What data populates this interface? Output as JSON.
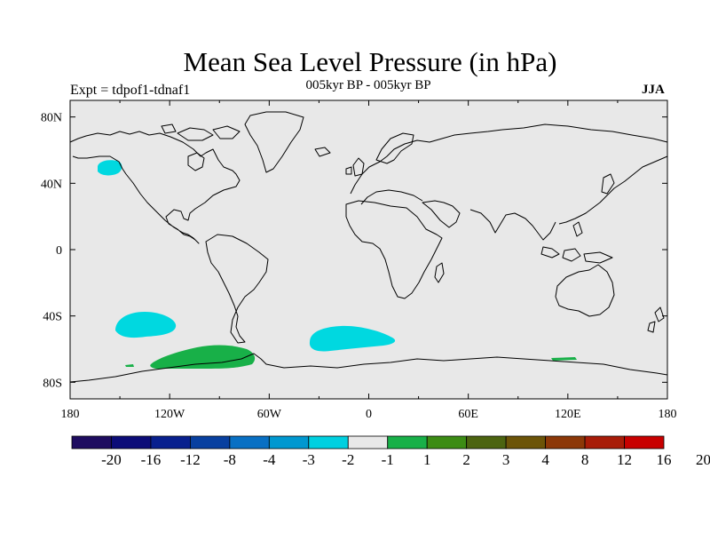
{
  "title": "Mean Sea Level Pressure (in hPa)",
  "subtitle": "005kyr BP - 005kyr BP",
  "left_label": "Expt = tdpof1-tdnaf1",
  "right_label": "JJA",
  "colors": {
    "ocean_background": "#e8e8e8",
    "coastline": "#000000"
  },
  "axes": {
    "lon_ticks": [
      "180",
      "120W",
      "60W",
      "0",
      "60E",
      "120E",
      "180"
    ],
    "lat_ticks": [
      "80N",
      "40N",
      "0",
      "40S",
      "80S"
    ]
  },
  "colorbar": {
    "colors": [
      "#1e0c60",
      "#0c0c78",
      "#08208e",
      "#0840a0",
      "#0870c4",
      "#0098d0",
      "#00d0e0",
      "#e8e8e8",
      "#18b048",
      "#3c8c14",
      "#4c6410",
      "#6c5408",
      "#8c3808",
      "#a81c08",
      "#c80000"
    ],
    "labels": [
      "-20",
      "-16",
      "-12",
      "-8",
      "-4",
      "-3",
      "-2",
      "-1",
      "1",
      "2",
      "3",
      "4",
      "8",
      "12",
      "16",
      "20"
    ]
  },
  "anomalies": [
    {
      "name": "north-pacific-negative",
      "color": "#00d8e0"
    },
    {
      "name": "south-pacific-negative",
      "color": "#00d8e0"
    },
    {
      "name": "south-atlantic-negative",
      "color": "#00d8e0"
    },
    {
      "name": "southern-ocean-positive",
      "color": "#18b048"
    },
    {
      "name": "southern-ocean-positive-small-west",
      "color": "#18b048"
    },
    {
      "name": "southern-ocean-positive-small-east",
      "color": "#18b048"
    }
  ]
}
